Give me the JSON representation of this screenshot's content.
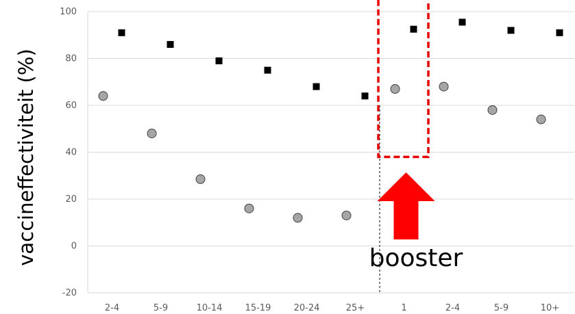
{
  "chart_data": {
    "type": "scatter",
    "categories": [
      "2-4",
      "5-9",
      "10-14",
      "15-19",
      "20-24",
      "25+",
      "1",
      "2-4",
      "5-9",
      "10+"
    ],
    "series": [
      {
        "marker": "square",
        "color": "#000000",
        "values": [
          91,
          86,
          79,
          75,
          68,
          64,
          92.5,
          95.5,
          92,
          91
        ]
      },
      {
        "marker": "circle",
        "color": "#a6a6a6",
        "values": [
          64,
          48,
          28.5,
          16,
          12,
          13,
          67,
          68,
          58,
          54
        ]
      }
    ],
    "xlabel": "",
    "ylabel": "vaccineffectiviteit (%)",
    "ylim": [
      -20,
      100
    ],
    "yticks": [
      -20,
      0,
      20,
      40,
      60,
      80,
      100
    ],
    "grid": true,
    "legend": "none",
    "annotations": {
      "booster_label": "booster",
      "arrow_color": "#ff0000",
      "highlight_color": "#e60000",
      "divider_between": [
        "25+",
        "1"
      ]
    }
  }
}
